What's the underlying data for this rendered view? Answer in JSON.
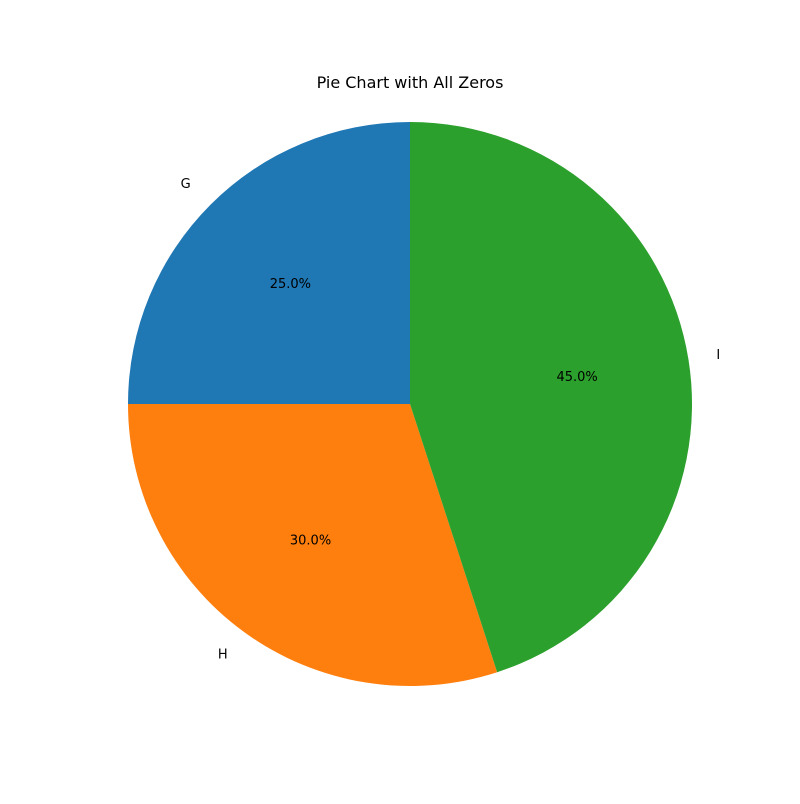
{
  "chart_data": {
    "type": "pie",
    "title": "Pie Chart with All Zeros",
    "start": "top, counterclockwise",
    "slices": [
      {
        "label": "G",
        "value": 25.0,
        "pct_label": "25.0%",
        "color": "#1f77b4"
      },
      {
        "label": "H",
        "value": 30.0,
        "pct_label": "30.0%",
        "color": "#ff7f0e"
      },
      {
        "label": "I",
        "value": 45.0,
        "pct_label": "45.0%",
        "color": "#2ca02c"
      }
    ]
  }
}
